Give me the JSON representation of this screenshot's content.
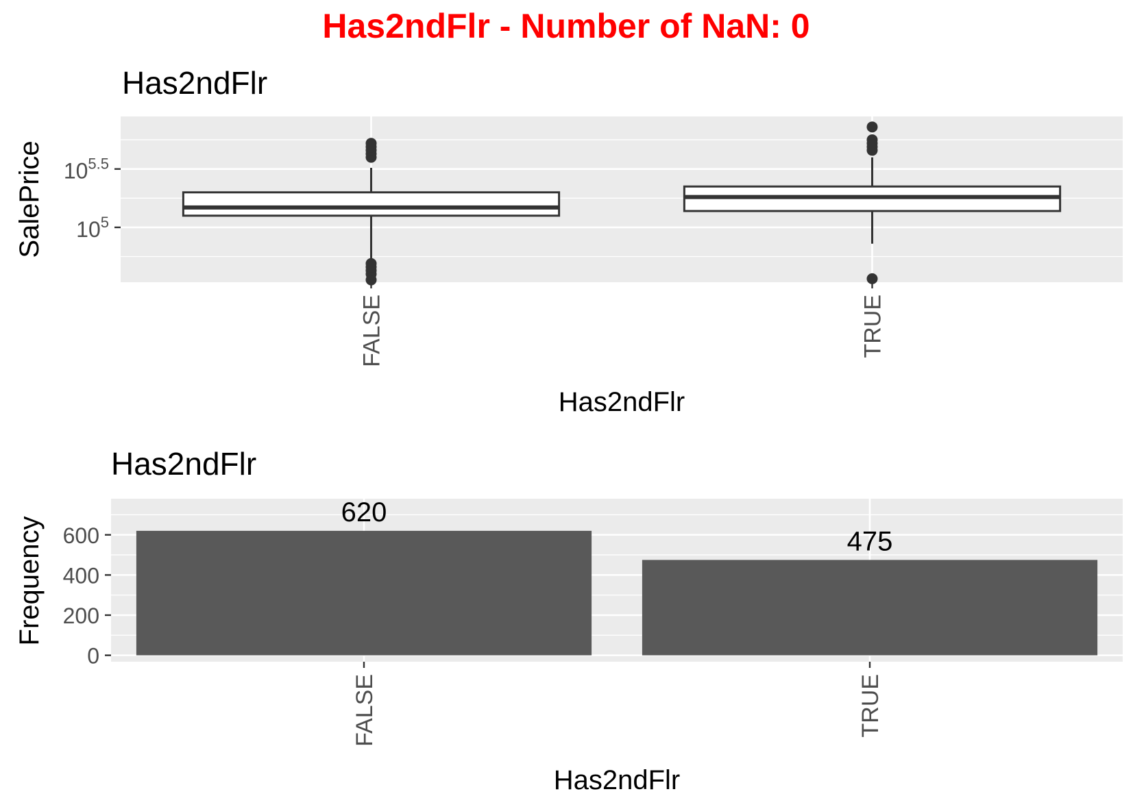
{
  "page_title": "Has2ndFlr - Number of NaN: 0",
  "colors": {
    "title": "#ff0000",
    "panel": "#ebebeb",
    "grid": "#ffffff",
    "bar": "#595959",
    "box": "#333333",
    "text": "#000000",
    "tick_text": "#4d4d4d"
  },
  "chart_data": [
    {
      "type": "box",
      "title": "Has2ndFlr",
      "xlabel": "Has2ndFlr",
      "ylabel": "SalePrice",
      "y_scale": "log10",
      "ylim": [
        4.53,
        5.95
      ],
      "y_ticks": [
        {
          "value": 5,
          "base": "10",
          "exp": "5"
        },
        {
          "value": 5.5,
          "base": "10",
          "exp": "5.5"
        }
      ],
      "categories": [
        "FALSE",
        "TRUE"
      ],
      "boxes": [
        {
          "category": "FALSE",
          "whisker_low": 4.73,
          "q1": 5.1,
          "median": 5.17,
          "q3": 5.3,
          "whisker_high": 5.51,
          "outliers": [
            4.55,
            4.6,
            4.63,
            4.66,
            4.69,
            5.6,
            5.63,
            5.66,
            5.69,
            5.72
          ]
        },
        {
          "category": "TRUE",
          "whisker_low": 4.86,
          "q1": 5.14,
          "median": 5.26,
          "q3": 5.35,
          "whisker_high": 5.6,
          "outliers": [
            4.56,
            5.66,
            5.69,
            5.72,
            5.75,
            5.86
          ]
        }
      ]
    },
    {
      "type": "bar",
      "title": "Has2ndFlr",
      "xlabel": "Has2ndFlr",
      "ylabel": "Frequency",
      "categories": [
        "FALSE",
        "TRUE"
      ],
      "values": [
        620,
        475
      ],
      "ylim": [
        -32,
        780
      ],
      "y_ticks": [
        0,
        200,
        400,
        600
      ]
    }
  ]
}
